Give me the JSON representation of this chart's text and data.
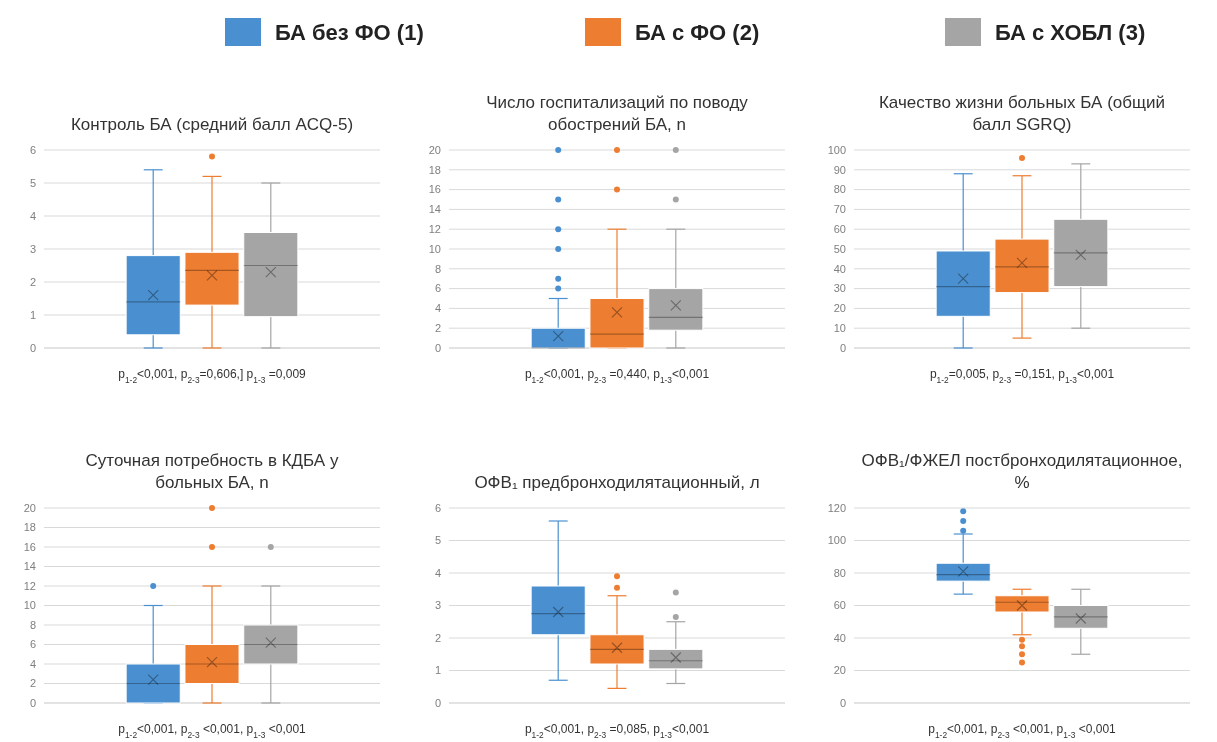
{
  "chart_data": [
    {
      "type": "box",
      "title": "Контроль БА (средний балл ACQ-5)",
      "categories": [
        null
      ],
      "legend": "top",
      "grid": "y",
      "ylim": [
        0,
        6
      ],
      "yticks": [
        0,
        1,
        2,
        3,
        4,
        5,
        6
      ],
      "annotations": [
        "p$_{1-2}$<0,001, p$_{2-3}$=0,606,] p$_{1-3}$ =0,009"
      ],
      "series": [
        {
          "name": "БА без ФО (1)",
          "color": "#4a90d0",
          "boxes": [
            {
              "low": 0,
              "q1": 0.4,
              "median": 1.4,
              "q3": 2.8,
              "high": 5.4,
              "mean": 1.6
            }
          ]
        },
        {
          "name": "БА с ФО (2)",
          "color": "#ed7d31",
          "boxes": [
            {
              "low": 0,
              "q1": 1.3,
              "median": 2.35,
              "q3": 2.9,
              "high": 5.2,
              "mean": 2.2,
              "outliers": [
                5.8
              ]
            }
          ]
        },
        {
          "name": "БА с ХОБЛ (3)",
          "color": "#a5a5a5",
          "boxes": [
            {
              "low": 0,
              "q1": 0.95,
              "median": 2.5,
              "q3": 3.5,
              "high": 5,
              "mean": 2.3
            }
          ]
        }
      ]
    },
    {
      "type": "box",
      "title": "Число госпитализаций по поводу обострений БА, n",
      "categories": [
        null
      ],
      "grid": "y",
      "ylim": [
        0,
        20
      ],
      "yticks": [
        0,
        2,
        4,
        6,
        8,
        10,
        12,
        14,
        16,
        18,
        20
      ],
      "annotations": [
        "p$_{1-2}$<0,001, p$_{2-3}$ =0,440, p$_{1-3}$<0,001"
      ],
      "series": [
        {
          "color": "#4a90d0",
          "boxes": [
            {
              "low": 0,
              "q1": 0,
              "median": 0,
              "q3": 2,
              "high": 5,
              "mean": 1.2,
              "outliers": [
                6,
                7,
                10,
                12,
                15,
                20
              ]
            }
          ]
        },
        {
          "color": "#ed7d31",
          "boxes": [
            {
              "low": 0,
              "q1": 0,
              "median": 1.4,
              "q3": 5,
              "high": 12,
              "mean": 3.6,
              "outliers": [
                16,
                20
              ]
            }
          ]
        },
        {
          "color": "#a5a5a5",
          "boxes": [
            {
              "low": 0,
              "q1": 1.8,
              "median": 3.1,
              "q3": 6,
              "high": 12,
              "mean": 4.3,
              "outliers": [
                15,
                20
              ]
            }
          ]
        }
      ]
    },
    {
      "type": "box",
      "title": "Качество жизни больных БА (общий балл SGRQ)",
      "categories": [
        null
      ],
      "grid": "y",
      "ylim": [
        0,
        100
      ],
      "yticks": [
        0,
        10,
        20,
        30,
        40,
        50,
        60,
        70,
        80,
        90,
        100
      ],
      "annotations": [
        "p$_{1-2}$=0,005, p$_{2-3}$ =0,151, p$_{1-3}$<0,001"
      ],
      "series": [
        {
          "color": "#4a90d0",
          "boxes": [
            {
              "low": 0,
              "q1": 16,
              "median": 31,
              "q3": 49,
              "high": 88,
              "mean": 35
            }
          ]
        },
        {
          "color": "#ed7d31",
          "boxes": [
            {
              "low": 5,
              "q1": 28,
              "median": 41,
              "q3": 55,
              "high": 87,
              "mean": 43,
              "outliers": [
                96
              ]
            }
          ]
        },
        {
          "color": "#a5a5a5",
          "boxes": [
            {
              "low": 10,
              "q1": 31,
              "median": 48,
              "q3": 65,
              "high": 93,
              "mean": 47
            }
          ]
        }
      ]
    },
    {
      "type": "box",
      "title": "Суточная потребность в КДБА у больных БА, n",
      "categories": [
        null
      ],
      "grid": "y",
      "ylim": [
        0,
        20
      ],
      "yticks": [
        0,
        2,
        4,
        6,
        8,
        10,
        12,
        14,
        16,
        18,
        20
      ],
      "annotations": [
        "p$_{1-2}$<0,001, p$_{2-3}$ <0,001, p$_{1-3}$ <0,001"
      ],
      "series": [
        {
          "color": "#4a90d0",
          "boxes": [
            {
              "low": 0,
              "q1": 0,
              "median": 2,
              "q3": 4,
              "high": 10,
              "mean": 2.4,
              "outliers": [
                12
              ]
            }
          ]
        },
        {
          "color": "#ed7d31",
          "boxes": [
            {
              "low": 0,
              "q1": 2,
              "median": 4,
              "q3": 6,
              "high": 12,
              "mean": 4.2,
              "outliers": [
                16,
                20
              ]
            }
          ]
        },
        {
          "color": "#a5a5a5",
          "boxes": [
            {
              "low": 0,
              "q1": 4,
              "median": 6,
              "q3": 8,
              "high": 12,
              "mean": 6.2,
              "outliers": [
                16
              ]
            }
          ]
        }
      ]
    },
    {
      "type": "box",
      "title": "ОФВ₁ предбронходилятационный, л",
      "categories": [
        null
      ],
      "grid": "y",
      "ylim": [
        0,
        6
      ],
      "yticks": [
        0,
        1,
        2,
        3,
        4,
        5,
        6
      ],
      "annotations": [
        "p$_{1-2}$<0,001, p$_{2-3}$ =0,085, p$_{1-3}$<0,001"
      ],
      "series": [
        {
          "color": "#4a90d0",
          "boxes": [
            {
              "low": 0.7,
              "q1": 2.1,
              "median": 2.75,
              "q3": 3.6,
              "high": 5.6,
              "mean": 2.8
            }
          ]
        },
        {
          "color": "#ed7d31",
          "boxes": [
            {
              "low": 0.45,
              "q1": 1.2,
              "median": 1.65,
              "q3": 2.1,
              "high": 3.3,
              "mean": 1.7,
              "outliers": [
                3.55,
                3.9
              ]
            }
          ]
        },
        {
          "color": "#a5a5a5",
          "boxes": [
            {
              "low": 0.6,
              "q1": 1.05,
              "median": 1.3,
              "q3": 1.65,
              "high": 2.5,
              "mean": 1.4,
              "outliers": [
                2.65,
                3.4
              ]
            }
          ]
        }
      ]
    },
    {
      "type": "box",
      "title": "ОФВ₁/ФЖЕЛ постбронходилятационное, %",
      "categories": [
        null
      ],
      "grid": "y",
      "ylim": [
        0,
        120
      ],
      "yticks": [
        0,
        20,
        40,
        60,
        80,
        100,
        120
      ],
      "annotations": [
        "p$_{1-2}$<0,001, p$_{2-3}$ <0,001, p$_{1-3}$ <0,001"
      ],
      "series": [
        {
          "color": "#4a90d0",
          "boxes": [
            {
              "low": 67,
              "q1": 75,
              "median": 79,
              "q3": 86,
              "high": 104,
              "mean": 81,
              "outliers": [
                106,
                112,
                118
              ]
            }
          ]
        },
        {
          "color": "#ed7d31",
          "boxes": [
            {
              "low": 42,
              "q1": 56,
              "median": 62,
              "q3": 66,
              "high": 70,
              "mean": 60,
              "outliers": [
                39,
                35,
                30,
                25
              ]
            }
          ]
        },
        {
          "color": "#a5a5a5",
          "boxes": [
            {
              "low": 30,
              "q1": 46,
              "median": 53,
              "q3": 60,
              "high": 70,
              "mean": 52
            }
          ]
        }
      ]
    }
  ]
}
